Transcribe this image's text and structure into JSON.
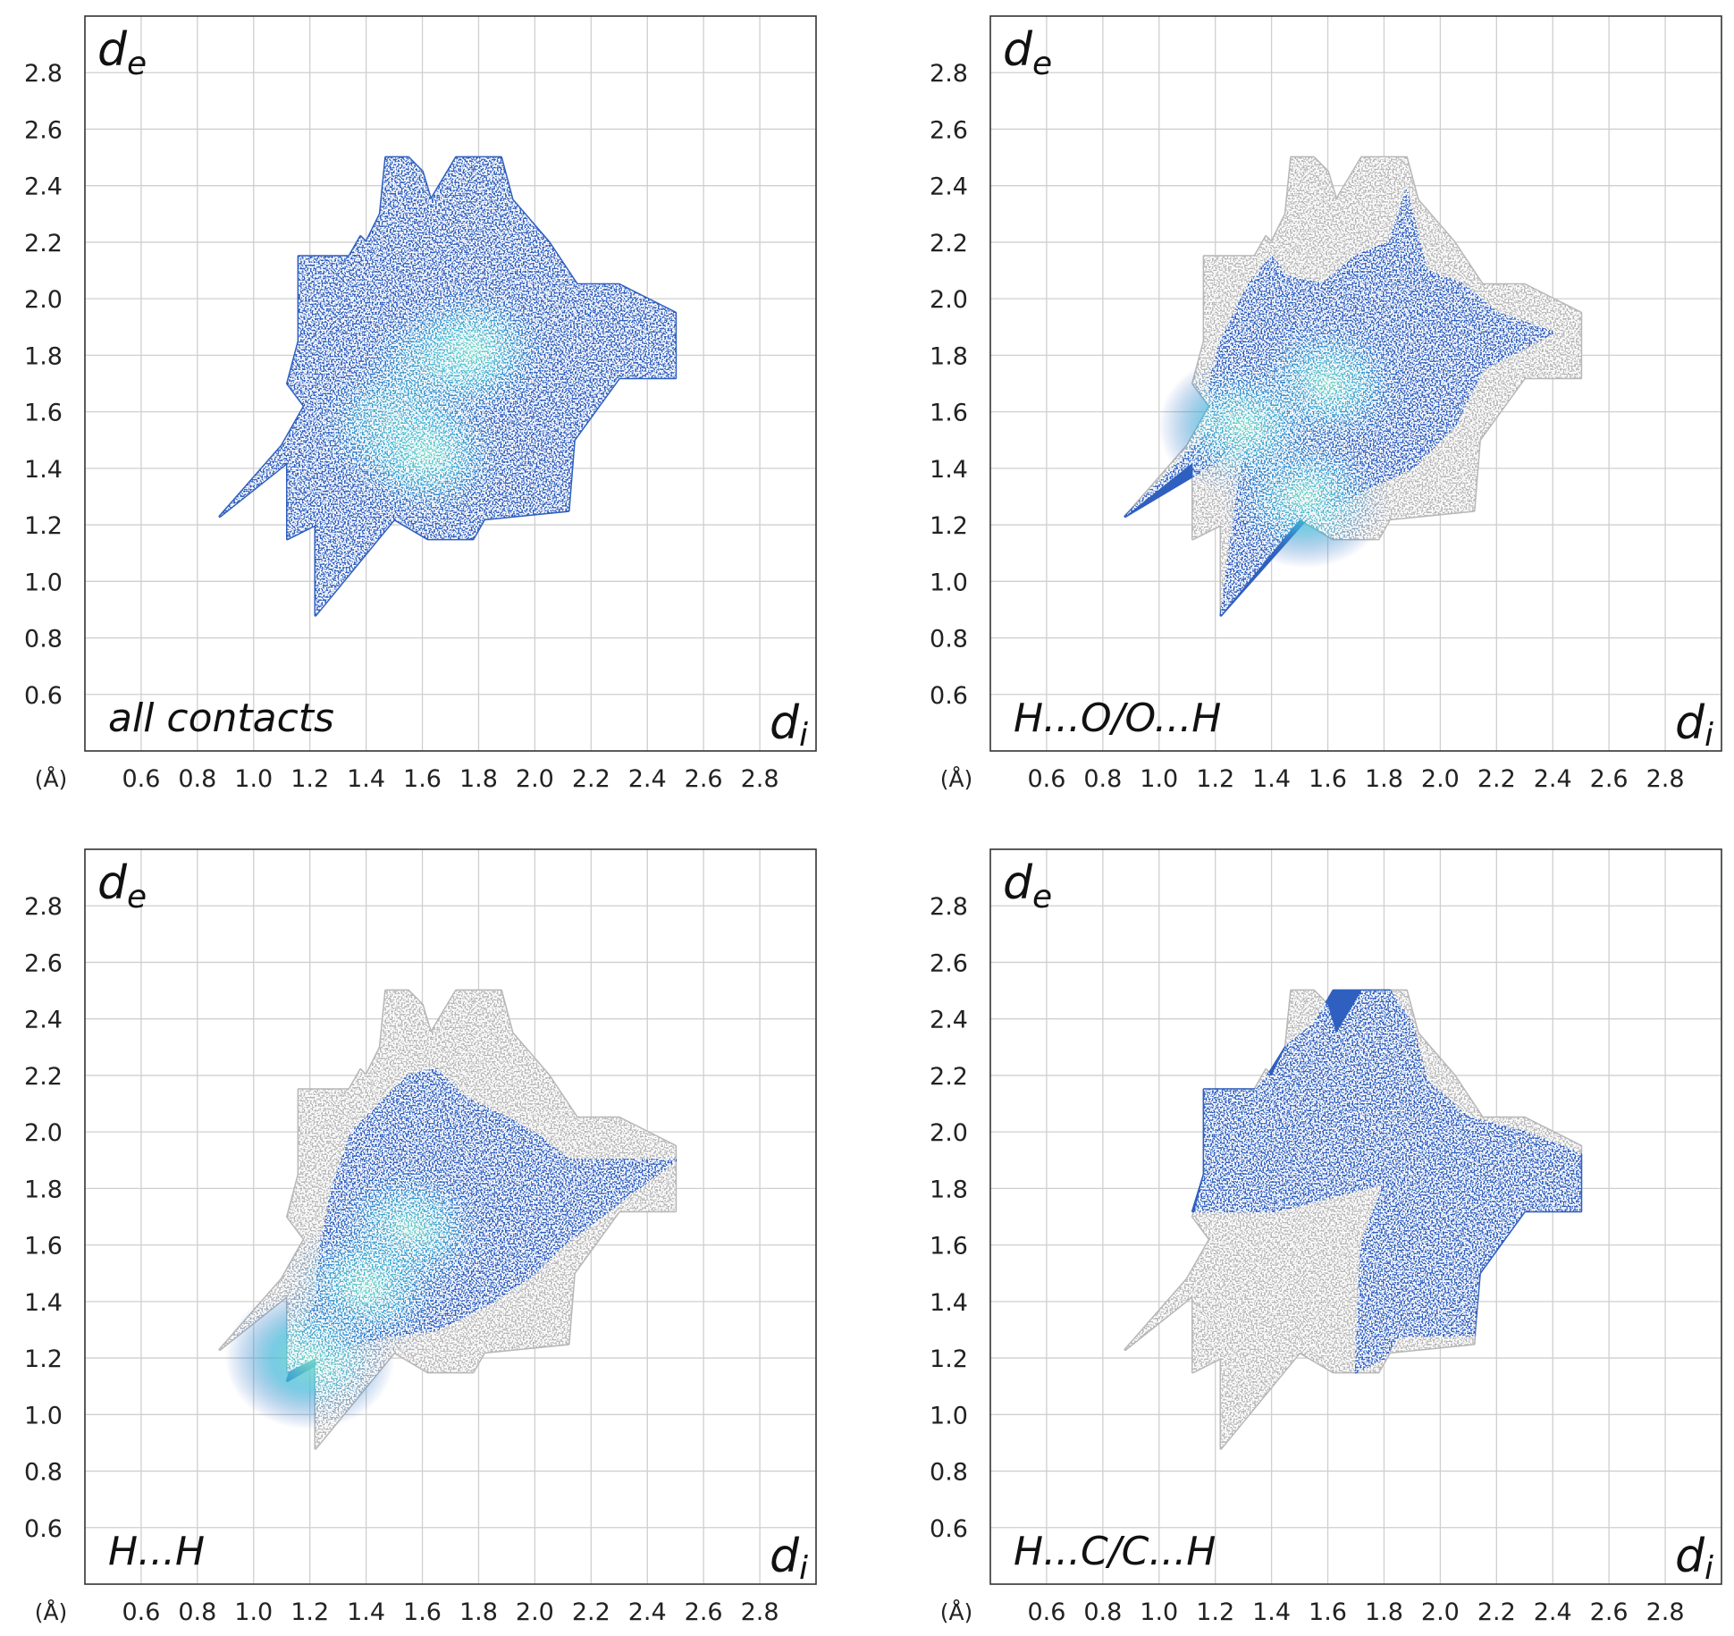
{
  "chart_data": [
    {
      "type": "heatmap",
      "title": "all contacts",
      "xlabel": "d",
      "xlabel_sub": "i",
      "ylabel": "d",
      "ylabel_sub": "e",
      "unit": "(Å)",
      "xlim": [
        0.4,
        3.0
      ],
      "ylim": [
        0.4,
        3.0
      ],
      "x_ticks": [
        "0.6",
        "0.8",
        "1.0",
        "1.2",
        "1.4",
        "1.6",
        "1.8",
        "2.0",
        "2.2",
        "2.4",
        "2.6",
        "2.8"
      ],
      "y_ticks": [
        "0.6",
        "0.8",
        "1.0",
        "1.2",
        "1.4",
        "1.6",
        "1.8",
        "2.0",
        "2.2",
        "2.4",
        "2.6",
        "2.8"
      ],
      "grid": true,
      "highlight": "all",
      "fingerprint_outline": [
        [
          0.88,
          1.23
        ],
        [
          1.12,
          1.42
        ],
        [
          1.12,
          1.15
        ],
        [
          1.22,
          1.2
        ],
        [
          1.22,
          0.88
        ],
        [
          1.5,
          1.22
        ],
        [
          1.62,
          1.15
        ],
        [
          1.78,
          1.15
        ],
        [
          1.82,
          1.22
        ],
        [
          2.12,
          1.25
        ],
        [
          2.14,
          1.5
        ],
        [
          2.3,
          1.72
        ],
        [
          2.5,
          1.72
        ],
        [
          2.5,
          1.95
        ],
        [
          2.3,
          2.05
        ],
        [
          2.15,
          2.05
        ],
        [
          2.05,
          2.2
        ],
        [
          1.92,
          2.35
        ],
        [
          1.88,
          2.5
        ],
        [
          1.72,
          2.5
        ],
        [
          1.63,
          2.35
        ],
        [
          1.6,
          2.45
        ],
        [
          1.55,
          2.5
        ],
        [
          1.47,
          2.5
        ],
        [
          1.45,
          2.3
        ],
        [
          1.4,
          2.2
        ],
        [
          1.38,
          2.22
        ],
        [
          1.34,
          2.15
        ],
        [
          1.16,
          2.15
        ],
        [
          1.16,
          1.85
        ],
        [
          1.12,
          1.7
        ],
        [
          1.18,
          1.62
        ],
        [
          1.1,
          1.48
        ]
      ],
      "highlight_outline": [
        [
          0.88,
          1.23
        ],
        [
          1.12,
          1.42
        ],
        [
          1.12,
          1.15
        ],
        [
          1.22,
          1.2
        ],
        [
          1.22,
          0.88
        ],
        [
          1.5,
          1.22
        ],
        [
          1.62,
          1.15
        ],
        [
          1.78,
          1.15
        ],
        [
          1.82,
          1.22
        ],
        [
          2.12,
          1.25
        ],
        [
          2.14,
          1.5
        ],
        [
          2.3,
          1.72
        ],
        [
          2.5,
          1.72
        ],
        [
          2.5,
          1.95
        ],
        [
          2.3,
          2.05
        ],
        [
          2.15,
          2.05
        ],
        [
          2.05,
          2.2
        ],
        [
          1.92,
          2.35
        ],
        [
          1.88,
          2.5
        ],
        [
          1.72,
          2.5
        ],
        [
          1.63,
          2.35
        ],
        [
          1.6,
          2.45
        ],
        [
          1.55,
          2.5
        ],
        [
          1.47,
          2.5
        ],
        [
          1.45,
          2.3
        ],
        [
          1.4,
          2.2
        ],
        [
          1.38,
          2.22
        ],
        [
          1.34,
          2.15
        ],
        [
          1.16,
          2.15
        ],
        [
          1.16,
          1.85
        ],
        [
          1.12,
          1.7
        ],
        [
          1.18,
          1.62
        ],
        [
          1.1,
          1.48
        ]
      ],
      "hotspots": [
        [
          1.65,
          1.75
        ],
        [
          1.78,
          1.82
        ],
        [
          1.5,
          1.55
        ],
        [
          1.62,
          1.45
        ]
      ]
    },
    {
      "type": "heatmap",
      "title": "H...O/O...H",
      "xlabel": "d",
      "xlabel_sub": "i",
      "ylabel": "d",
      "ylabel_sub": "e",
      "unit": "(Å)",
      "xlim": [
        0.4,
        3.0
      ],
      "ylim": [
        0.4,
        3.0
      ],
      "x_ticks": [
        "0.6",
        "0.8",
        "1.0",
        "1.2",
        "1.4",
        "1.6",
        "1.8",
        "2.0",
        "2.2",
        "2.4",
        "2.6",
        "2.8"
      ],
      "y_ticks": [
        "0.6",
        "0.8",
        "1.0",
        "1.2",
        "1.4",
        "1.6",
        "1.8",
        "2.0",
        "2.2",
        "2.4",
        "2.6",
        "2.8"
      ],
      "grid": true,
      "highlight": "partial",
      "fingerprint_outline": [
        [
          0.88,
          1.23
        ],
        [
          1.12,
          1.42
        ],
        [
          1.12,
          1.15
        ],
        [
          1.22,
          1.2
        ],
        [
          1.22,
          0.88
        ],
        [
          1.5,
          1.22
        ],
        [
          1.62,
          1.15
        ],
        [
          1.78,
          1.15
        ],
        [
          1.82,
          1.22
        ],
        [
          2.12,
          1.25
        ],
        [
          2.14,
          1.5
        ],
        [
          2.3,
          1.72
        ],
        [
          2.5,
          1.72
        ],
        [
          2.5,
          1.95
        ],
        [
          2.3,
          2.05
        ],
        [
          2.15,
          2.05
        ],
        [
          2.05,
          2.2
        ],
        [
          1.92,
          2.35
        ],
        [
          1.88,
          2.5
        ],
        [
          1.72,
          2.5
        ],
        [
          1.63,
          2.35
        ],
        [
          1.6,
          2.45
        ],
        [
          1.55,
          2.5
        ],
        [
          1.47,
          2.5
        ],
        [
          1.45,
          2.3
        ],
        [
          1.4,
          2.2
        ],
        [
          1.38,
          2.22
        ],
        [
          1.34,
          2.15
        ],
        [
          1.16,
          2.15
        ],
        [
          1.16,
          1.85
        ],
        [
          1.12,
          1.7
        ],
        [
          1.18,
          1.62
        ],
        [
          1.1,
          1.48
        ]
      ],
      "highlight_outline": [
        [
          0.88,
          1.23
        ],
        [
          1.2,
          1.42
        ],
        [
          1.3,
          1.5
        ],
        [
          1.3,
          1.45
        ],
        [
          1.22,
          0.88
        ],
        [
          1.55,
          1.25
        ],
        [
          1.6,
          1.25
        ],
        [
          1.72,
          1.32
        ],
        [
          1.9,
          1.4
        ],
        [
          2.05,
          1.55
        ],
        [
          2.15,
          1.75
        ],
        [
          2.4,
          1.88
        ],
        [
          2.2,
          1.95
        ],
        [
          2.08,
          2.05
        ],
        [
          1.95,
          2.1
        ],
        [
          1.88,
          2.38
        ],
        [
          1.82,
          2.2
        ],
        [
          1.7,
          2.15
        ],
        [
          1.58,
          2.05
        ],
        [
          1.45,
          2.08
        ],
        [
          1.4,
          2.15
        ],
        [
          1.32,
          2.05
        ],
        [
          1.22,
          1.85
        ],
        [
          1.18,
          1.7
        ],
        [
          1.2,
          1.55
        ]
      ],
      "hotspots": [
        [
          1.6,
          1.7
        ],
        [
          1.52,
          1.3
        ],
        [
          1.3,
          1.55
        ]
      ]
    },
    {
      "type": "heatmap",
      "title": "H...H",
      "xlabel": "d",
      "xlabel_sub": "i",
      "ylabel": "d",
      "ylabel_sub": "e",
      "unit": "(Å)",
      "xlim": [
        0.4,
        3.0
      ],
      "ylim": [
        0.4,
        3.0
      ],
      "x_ticks": [
        "0.6",
        "0.8",
        "1.0",
        "1.2",
        "1.4",
        "1.6",
        "1.8",
        "2.0",
        "2.2",
        "2.4",
        "2.6",
        "2.8"
      ],
      "y_ticks": [
        "0.6",
        "0.8",
        "1.0",
        "1.2",
        "1.4",
        "1.6",
        "1.8",
        "2.0",
        "2.2",
        "2.4",
        "2.6",
        "2.8"
      ],
      "grid": true,
      "highlight": "partial",
      "fingerprint_outline": [
        [
          0.88,
          1.23
        ],
        [
          1.12,
          1.42
        ],
        [
          1.12,
          1.15
        ],
        [
          1.22,
          1.2
        ],
        [
          1.22,
          0.88
        ],
        [
          1.5,
          1.22
        ],
        [
          1.62,
          1.15
        ],
        [
          1.78,
          1.15
        ],
        [
          1.82,
          1.22
        ],
        [
          2.12,
          1.25
        ],
        [
          2.14,
          1.5
        ],
        [
          2.3,
          1.72
        ],
        [
          2.5,
          1.72
        ],
        [
          2.5,
          1.95
        ],
        [
          2.3,
          2.05
        ],
        [
          2.15,
          2.05
        ],
        [
          2.05,
          2.2
        ],
        [
          1.92,
          2.35
        ],
        [
          1.88,
          2.5
        ],
        [
          1.72,
          2.5
        ],
        [
          1.63,
          2.35
        ],
        [
          1.6,
          2.45
        ],
        [
          1.55,
          2.5
        ],
        [
          1.47,
          2.5
        ],
        [
          1.45,
          2.3
        ],
        [
          1.4,
          2.2
        ],
        [
          1.38,
          2.22
        ],
        [
          1.34,
          2.15
        ],
        [
          1.16,
          2.15
        ],
        [
          1.16,
          1.85
        ],
        [
          1.12,
          1.7
        ],
        [
          1.18,
          1.62
        ],
        [
          1.1,
          1.48
        ]
      ],
      "highlight_outline": [
        [
          1.12,
          1.12
        ],
        [
          1.35,
          1.25
        ],
        [
          1.48,
          1.28
        ],
        [
          1.65,
          1.3
        ],
        [
          1.85,
          1.4
        ],
        [
          2.0,
          1.5
        ],
        [
          2.1,
          1.6
        ],
        [
          2.3,
          1.75
        ],
        [
          2.5,
          1.9
        ],
        [
          2.3,
          1.9
        ],
        [
          2.12,
          1.9
        ],
        [
          2.02,
          1.98
        ],
        [
          1.9,
          2.05
        ],
        [
          1.75,
          2.12
        ],
        [
          1.65,
          2.22
        ],
        [
          1.55,
          2.2
        ],
        [
          1.45,
          2.1
        ],
        [
          1.35,
          2.0
        ],
        [
          1.28,
          1.8
        ],
        [
          1.24,
          1.6
        ],
        [
          1.22,
          1.4
        ],
        [
          1.16,
          1.25
        ]
      ],
      "hotspots": [
        [
          1.55,
          1.65
        ],
        [
          1.4,
          1.45
        ],
        [
          1.2,
          1.2
        ]
      ]
    },
    {
      "type": "heatmap",
      "title": "H...C/C...H",
      "xlabel": "d",
      "xlabel_sub": "i",
      "ylabel": "d",
      "ylabel_sub": "e",
      "unit": "(Å)",
      "xlim": [
        0.4,
        3.0
      ],
      "ylim": [
        0.4,
        3.0
      ],
      "x_ticks": [
        "0.6",
        "0.8",
        "1.0",
        "1.2",
        "1.4",
        "1.6",
        "1.8",
        "2.0",
        "2.2",
        "2.4",
        "2.6",
        "2.8"
      ],
      "y_ticks": [
        "0.6",
        "0.8",
        "1.0",
        "1.2",
        "1.4",
        "1.6",
        "1.8",
        "2.0",
        "2.2",
        "2.4",
        "2.6",
        "2.8"
      ],
      "grid": true,
      "highlight": "partial",
      "fingerprint_outline": [
        [
          0.88,
          1.23
        ],
        [
          1.12,
          1.42
        ],
        [
          1.12,
          1.15
        ],
        [
          1.22,
          1.2
        ],
        [
          1.22,
          0.88
        ],
        [
          1.5,
          1.22
        ],
        [
          1.62,
          1.15
        ],
        [
          1.78,
          1.15
        ],
        [
          1.82,
          1.22
        ],
        [
          2.12,
          1.25
        ],
        [
          2.14,
          1.5
        ],
        [
          2.3,
          1.72
        ],
        [
          2.5,
          1.72
        ],
        [
          2.5,
          1.95
        ],
        [
          2.3,
          2.05
        ],
        [
          2.15,
          2.05
        ],
        [
          2.05,
          2.2
        ],
        [
          1.92,
          2.35
        ],
        [
          1.88,
          2.5
        ],
        [
          1.72,
          2.5
        ],
        [
          1.63,
          2.35
        ],
        [
          1.6,
          2.45
        ],
        [
          1.55,
          2.5
        ],
        [
          1.47,
          2.5
        ],
        [
          1.45,
          2.3
        ],
        [
          1.4,
          2.2
        ],
        [
          1.38,
          2.22
        ],
        [
          1.34,
          2.15
        ],
        [
          1.16,
          2.15
        ],
        [
          1.16,
          1.85
        ],
        [
          1.12,
          1.7
        ],
        [
          1.18,
          1.62
        ],
        [
          1.1,
          1.48
        ]
      ],
      "highlight_outline": [
        [
          1.12,
          1.72
        ],
        [
          1.42,
          1.72
        ],
        [
          1.8,
          1.82
        ],
        [
          1.72,
          1.6
        ],
        [
          1.7,
          1.15
        ],
        [
          1.8,
          1.2
        ],
        [
          1.85,
          1.28
        ],
        [
          2.12,
          1.28
        ],
        [
          2.14,
          1.5
        ],
        [
          2.3,
          1.72
        ],
        [
          2.5,
          1.72
        ],
        [
          2.5,
          1.92
        ],
        [
          2.3,
          2.0
        ],
        [
          2.1,
          2.05
        ],
        [
          1.95,
          2.18
        ],
        [
          1.9,
          2.38
        ],
        [
          1.82,
          2.5
        ],
        [
          1.62,
          2.5
        ],
        [
          1.55,
          2.38
        ],
        [
          1.45,
          2.3
        ],
        [
          1.4,
          2.22
        ],
        [
          1.35,
          2.15
        ],
        [
          1.16,
          2.15
        ],
        [
          1.16,
          1.85
        ]
      ],
      "hotspots": []
    }
  ]
}
